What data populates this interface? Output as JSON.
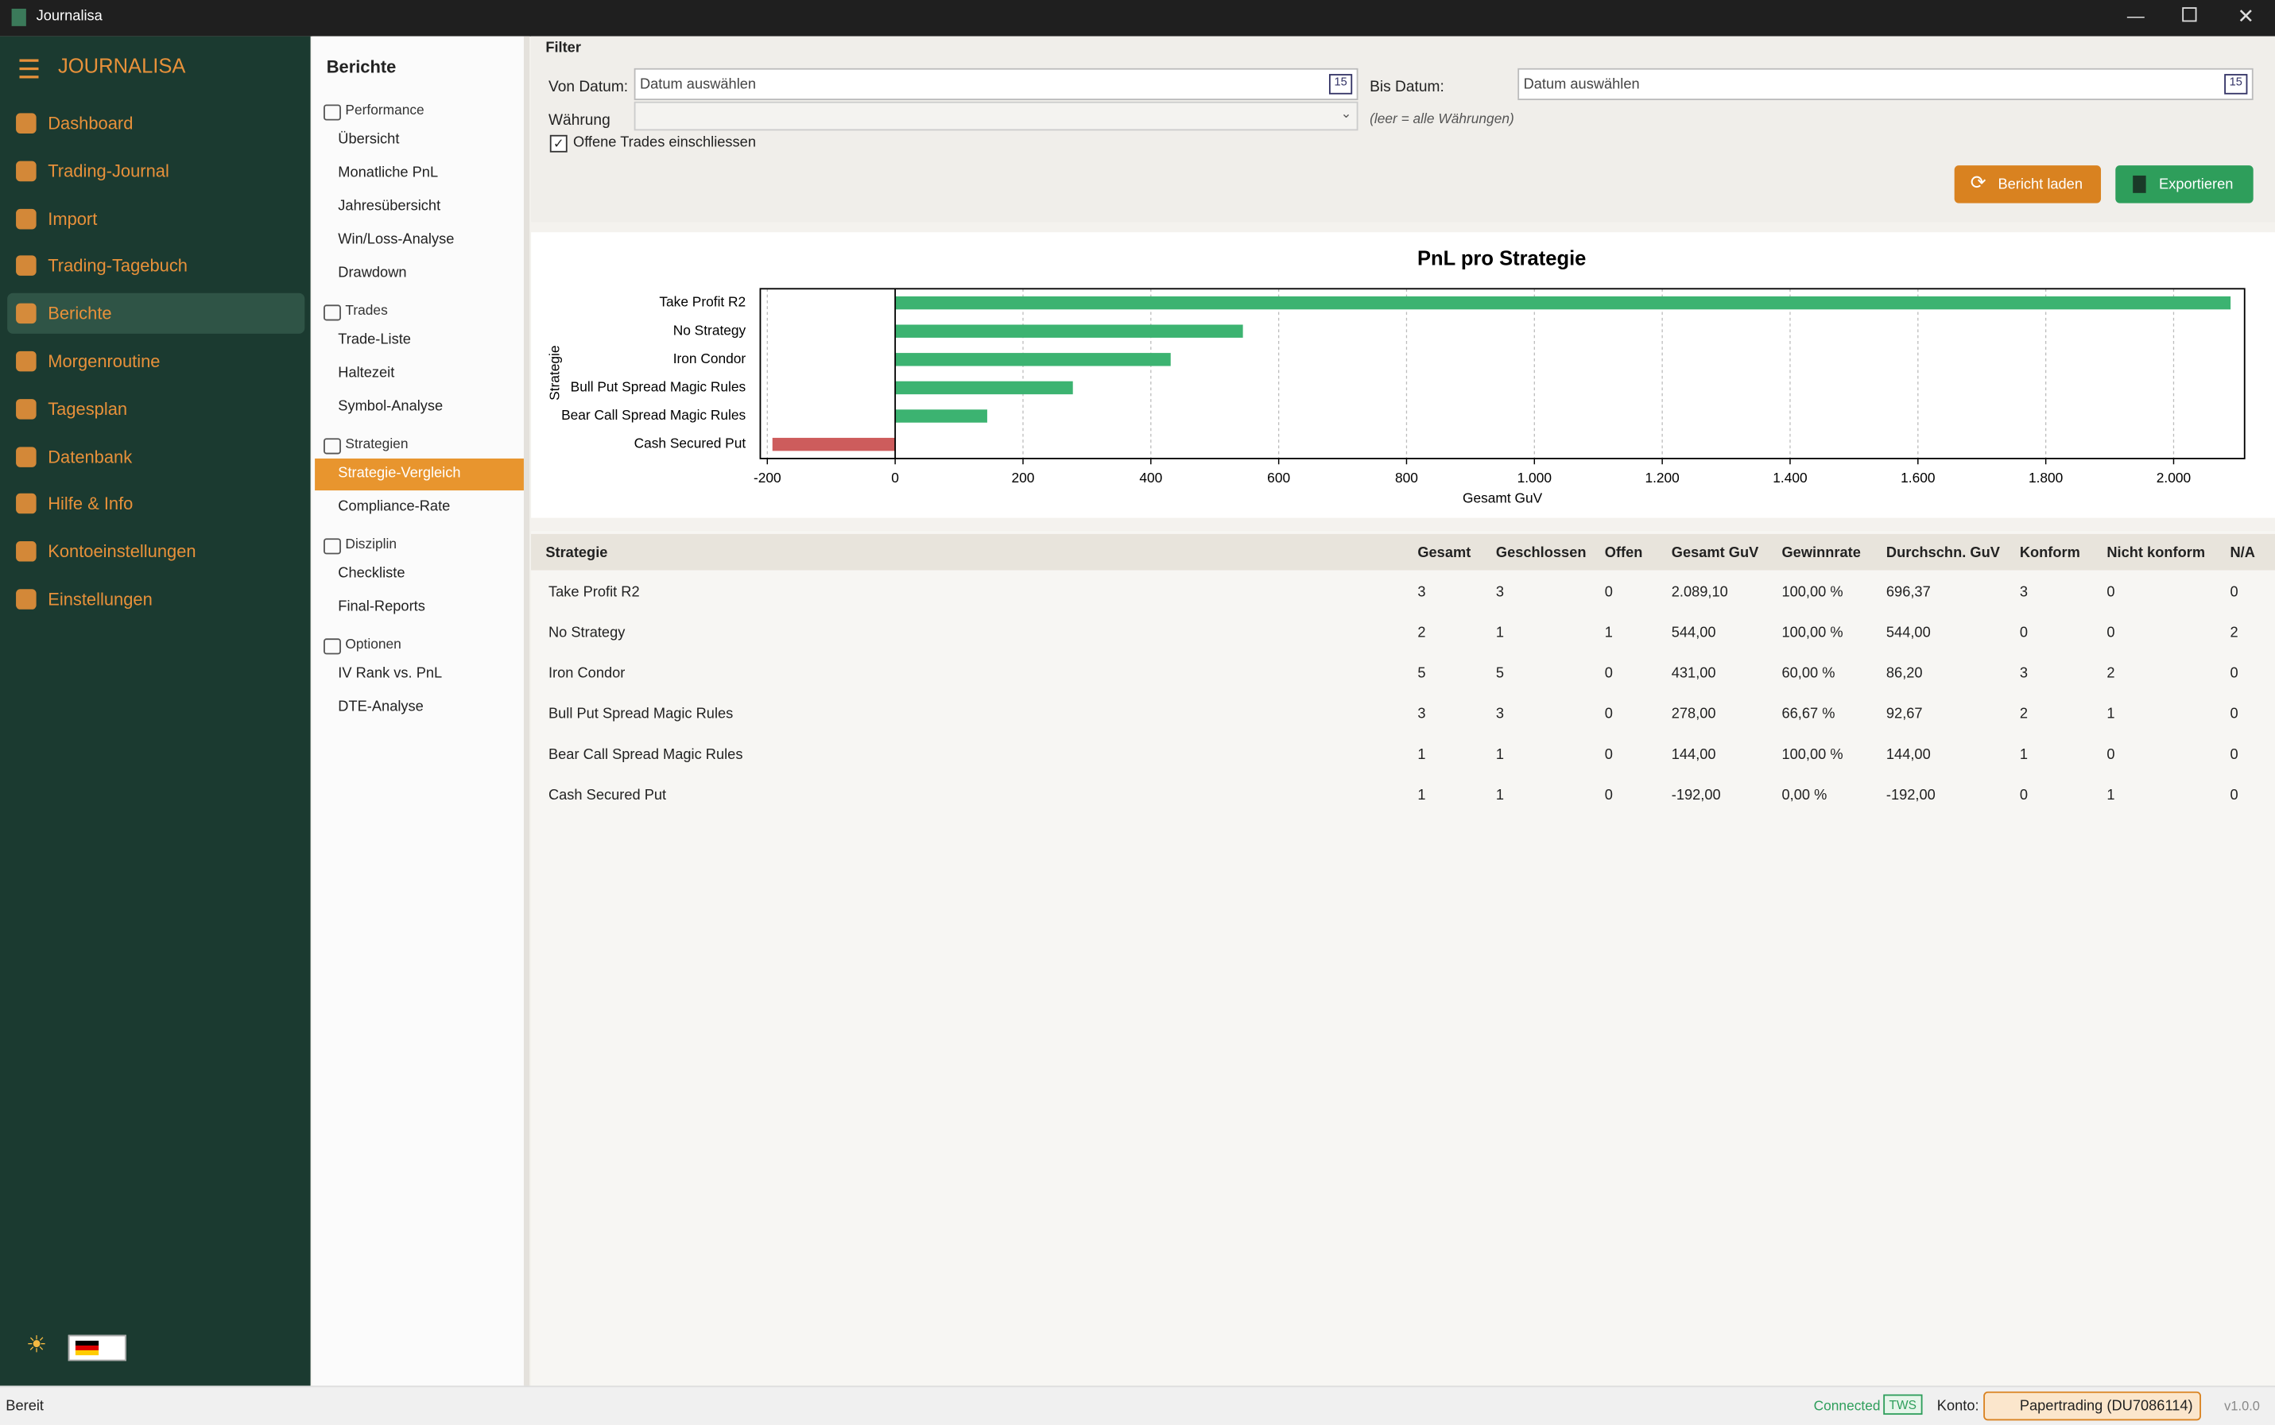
{
  "window": {
    "title": "Journalisa"
  },
  "sidebar": {
    "brand": "JOURNALISA",
    "active": 4,
    "items": [
      "Dashboard",
      "Trading-Journal",
      "Import",
      "Trading-Tagebuch",
      "Berichte",
      "Morgenroutine",
      "Tagesplan",
      "Datenbank",
      "Hilfe & Info",
      "Kontoeinstellungen",
      "Einstellungen"
    ]
  },
  "reports": {
    "title": "Berichte",
    "active": [
      2,
      0
    ],
    "groups": [
      {
        "name": "Performance",
        "items": [
          "Übersicht",
          "Monatliche PnL",
          "Jahresübersicht",
          "Win/Loss-Analyse",
          "Drawdown"
        ]
      },
      {
        "name": "Trades",
        "items": [
          "Trade-Liste",
          "Haltezeit",
          "Symbol-Analyse"
        ]
      },
      {
        "name": "Strategien",
        "items": [
          "Strategie-Vergleich",
          "Compliance-Rate"
        ]
      },
      {
        "name": "Disziplin",
        "items": [
          "Checkliste",
          "Final-Reports"
        ]
      },
      {
        "name": "Optionen",
        "items": [
          "IV Rank vs. PnL",
          "DTE-Analyse"
        ]
      }
    ]
  },
  "filter": {
    "title": "Filter",
    "from_label": "Von Datum:",
    "from_placeholder": "Datum auswählen",
    "to_label": "Bis Datum:",
    "to_placeholder": "Datum auswählen",
    "calendar_icon": "15",
    "currency_label": "Währung",
    "currency_hint": "(leer = alle Währungen)",
    "open_trades": "Offene Trades einschliessen",
    "load": "Bericht laden",
    "export": "Exportieren"
  },
  "chart_data": {
    "type": "bar",
    "orientation": "horizontal",
    "title": "PnL pro Strategie",
    "xlabel": "Gesamt GuV",
    "ylabel": "Strategie",
    "categories": [
      "Take Profit R2",
      "No Strategy",
      "Iron Condor",
      "Bull Put Spread Magic Rules",
      "Bear Call Spread Magic Rules",
      "Cash Secured Put"
    ],
    "values": [
      2089.1,
      544,
      431,
      278,
      144,
      -192
    ],
    "colors": [
      "#3cb371",
      "#3cb371",
      "#3cb371",
      "#3cb371",
      "#3cb371",
      "#cd5c5c"
    ],
    "xlim": [
      -211,
      2111
    ],
    "xticks": [
      -200,
      0,
      200,
      400,
      600,
      800,
      {
        "value": 1000,
        "label": "1.000"
      },
      {
        "value": 1200,
        "label": "1.200"
      },
      {
        "value": 1400,
        "label": "1.400"
      },
      {
        "value": 1600,
        "label": "1.600"
      },
      {
        "value": 1800,
        "label": "1.800"
      },
      {
        "value": 2000,
        "label": "2.000"
      }
    ],
    "grid": true
  },
  "table": {
    "columns": [
      "Strategie",
      "Gesamt",
      "Geschlossen",
      "Offen",
      "Gesamt GuV",
      "Gewinnrate",
      "Durchschn. GuV",
      "Konform",
      "Nicht konform",
      "N/A"
    ],
    "rows": [
      [
        "Take Profit R2",
        "3",
        "3",
        "0",
        "2.089,10",
        "100,00 %",
        "696,37",
        "3",
        "0",
        "0"
      ],
      [
        "No Strategy",
        "2",
        "1",
        "1",
        "544,00",
        "100,00 %",
        "544,00",
        "0",
        "0",
        "2"
      ],
      [
        "Iron Condor",
        "5",
        "5",
        "0",
        "431,00",
        "60,00 %",
        "86,20",
        "3",
        "2",
        "0"
      ],
      [
        "Bull Put Spread Magic Rules",
        "3",
        "3",
        "0",
        "278,00",
        "66,67 %",
        "92,67",
        "2",
        "1",
        "0"
      ],
      [
        "Bear Call Spread Magic Rules",
        "1",
        "1",
        "0",
        "144,00",
        "100,00 %",
        "144,00",
        "1",
        "0",
        "0"
      ],
      [
        "Cash Secured Put",
        "1",
        "1",
        "0",
        "-192,00",
        "0,00 %",
        "-192,00",
        "0",
        "1",
        "0"
      ]
    ]
  },
  "status": {
    "left": "Bereit",
    "connection": "Connected",
    "api": "TWS",
    "account_label": "Konto:",
    "account": "Papertrading (DU7086114)",
    "version": "v1.0.0"
  }
}
